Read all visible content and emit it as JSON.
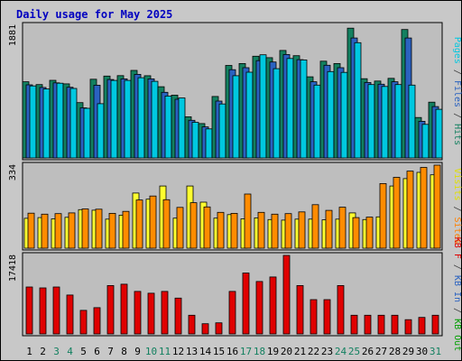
{
  "chart_data": {
    "type": "bar",
    "title": "Daily usage for May 2025",
    "days": [
      "1",
      "2",
      "3",
      "4",
      "5",
      "6",
      "7",
      "8",
      "9",
      "10",
      "11",
      "12",
      "13",
      "14",
      "15",
      "16",
      "17",
      "18",
      "19",
      "20",
      "21",
      "22",
      "23",
      "24",
      "25",
      "26",
      "27",
      "28",
      "29",
      "30",
      "31"
    ],
    "weekend_days": [
      "3",
      "4",
      "10",
      "11",
      "17",
      "18",
      "24",
      "25",
      "31"
    ],
    "panels": [
      {
        "id": "top",
        "max_label": "1881",
        "ymax": 1881,
        "side_label_parts": [
          {
            "text": "Pages",
            "color": "#00c8e0"
          },
          {
            "text": " / ",
            "color": "#404040"
          },
          {
            "text": "Files",
            "color": "#2a62c0"
          },
          {
            "text": " / ",
            "color": "#404040"
          },
          {
            "text": "Hits",
            "color": "#138060"
          }
        ],
        "series": [
          {
            "name": "Hits",
            "color": "#138060",
            "values": [
              1080,
              1040,
              1100,
              1050,
              785,
              1116,
              1160,
              1167,
              1241,
              1166,
              1009,
              891,
              583,
              487,
              871,
              1311,
              1338,
              1442,
              1422,
              1524,
              1450,
              1150,
              1372,
              1338,
              1840,
              1124,
              1090,
              1129,
              1821,
              573,
              791
            ]
          },
          {
            "name": "Files",
            "color": "#2a62c0",
            "values": [
              1037,
              1000,
              1065,
              1002,
              710,
              1031,
              1112,
              1121,
              1185,
              1121,
              930,
              832,
              533,
              440,
              806,
              1252,
              1280,
              1379,
              1360,
              1467,
              1393,
              1080,
              1314,
              1280,
              1700,
              1070,
              1045,
              1080,
              1700,
              520,
              728
            ]
          },
          {
            "name": "Pages",
            "color": "#00c8e0",
            "values": [
              1021,
              978,
              1060,
              985,
              704,
              769,
              1099,
              1099,
              1137,
              1086,
              878,
              851,
              505,
              412,
              765,
              1166,
              1216,
              1462,
              1265,
              1410,
              1389,
              1032,
              1225,
              1213,
              1634,
              1040,
              1014,
              1040,
              1032,
              476,
              690
            ]
          }
        ]
      },
      {
        "id": "middle",
        "max_label": "334",
        "ymax": 334,
        "side_label_parts": [
          {
            "text": "Visits",
            "color": "#e0e000"
          },
          {
            "text": " / ",
            "color": "#404040"
          },
          {
            "text": "Sites",
            "color": "#ff8000"
          }
        ],
        "series": [
          {
            "name": "Visits",
            "color": "#ffff30",
            "values": [
              120,
              123,
              118,
              124,
              155,
              153,
              117,
              133,
              222,
              197,
              250,
              121,
              250,
              185,
              121,
              135,
              118,
              122,
              115,
              113,
              117,
              117,
              114,
              117,
              142,
              115,
              126,
              250,
              280,
              305,
              295
            ]
          },
          {
            "name": "Sites",
            "color": "#ff8c00",
            "values": [
              141,
              137,
              139,
              142,
              158,
              157,
              140,
              148,
              194,
              210,
              195,
              164,
              183,
              166,
              144,
              140,
              218,
              144,
              137,
              139,
              146,
              175,
              152,
              165,
              123,
              125,
              260,
              285,
              310,
              325,
              334
            ]
          }
        ]
      },
      {
        "id": "bottom",
        "max_label": "17418",
        "ymax": 17418,
        "side_label_parts": [
          {
            "text": "KB F",
            "color": "#e00000"
          },
          {
            "text": " / ",
            "color": "#404040"
          },
          {
            "text": "KB In",
            "color": "#2a62c0"
          },
          {
            "text": " / ",
            "color": "#404040"
          },
          {
            "text": "KB Out",
            "color": "#00a000"
          }
        ],
        "series": [
          {
            "name": "KB F",
            "color": "#e00000",
            "values": [
              10420,
              10220,
              10420,
              8620,
              5220,
              5820,
              10740,
              11040,
              9420,
              9020,
              9420,
              7940,
              4140,
              2260,
              2460,
              9420,
              13520,
              11640,
              12640,
              17418,
              10740,
              7600,
              7600,
              10740,
              4140,
              4140,
              4140,
              4140,
              3160,
              3660,
              4140
            ]
          }
        ]
      }
    ]
  }
}
